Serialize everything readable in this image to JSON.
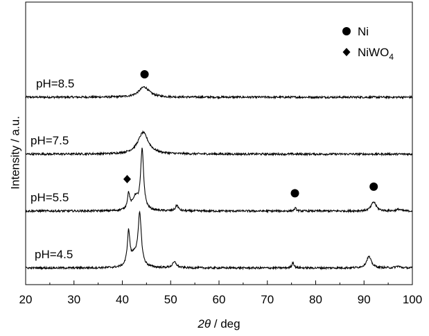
{
  "chart_data": {
    "type": "line",
    "title": "",
    "xlabel": {
      "symbol": "2θ",
      "unit": " / deg"
    },
    "ylabel": "Intensity / a.u.",
    "xlim": [
      20,
      100
    ],
    "x_ticks": [
      20,
      30,
      40,
      50,
      60,
      70,
      80,
      90,
      100
    ],
    "y_ticks_shown": false,
    "grid": false,
    "legend": {
      "placement": "top-right",
      "entries": [
        {
          "marker": "circle",
          "label": "Ni",
          "sub": ""
        },
        {
          "marker": "diamond",
          "label": "NiWO",
          "sub": "4"
        }
      ]
    },
    "series": [
      {
        "name": "pH=8.5",
        "offset": 3,
        "peaks": [
          {
            "x": 44.5,
            "height": 0.18,
            "width": 2.6,
            "phase": "Ni"
          }
        ]
      },
      {
        "name": "pH=7.5",
        "offset": 2,
        "peaks": [
          {
            "x": 44.3,
            "height": 0.38,
            "width": 2.6,
            "phase": "Ni"
          }
        ]
      },
      {
        "name": "pH=5.5",
        "offset": 1,
        "peaks": [
          {
            "x": 41.3,
            "height": 0.28,
            "width": 0.6,
            "phase": "NiWO4"
          },
          {
            "x": 44.1,
            "height": 1.05,
            "width": 0.75,
            "phase": "Ni"
          },
          {
            "x": 42.7,
            "height": 0.22,
            "width": 1.4
          },
          {
            "x": 51.3,
            "height": 0.1,
            "width": 0.7
          },
          {
            "x": 75.8,
            "height": 0.05,
            "width": 0.5,
            "phase": "Ni"
          },
          {
            "x": 92.0,
            "height": 0.16,
            "width": 1.2,
            "phase": "Ni"
          },
          {
            "x": 97.2,
            "height": 0.03,
            "width": 1.0
          }
        ]
      },
      {
        "name": "pH=4.5",
        "offset": 0,
        "peaks": [
          {
            "x": 41.3,
            "height": 0.6,
            "width": 0.65
          },
          {
            "x": 43.6,
            "height": 0.91,
            "width": 0.8
          },
          {
            "x": 42.5,
            "height": 0.2,
            "width": 1.5
          },
          {
            "x": 50.8,
            "height": 0.1,
            "width": 1.0
          },
          {
            "x": 75.3,
            "height": 0.1,
            "width": 0.5
          },
          {
            "x": 91.0,
            "height": 0.2,
            "width": 1.2
          },
          {
            "x": 97.0,
            "height": 0.03,
            "width": 1.0
          }
        ]
      }
    ],
    "annotations": [
      {
        "series": "pH=8.5",
        "x": 44.6,
        "marker": "circle"
      },
      {
        "series": "pH=5.5",
        "x": 41.0,
        "marker": "diamond"
      },
      {
        "series": "pH=5.5",
        "x": 75.7,
        "marker": "circle"
      },
      {
        "series": "pH=5.5",
        "x": 92.0,
        "marker": "circle"
      }
    ]
  }
}
